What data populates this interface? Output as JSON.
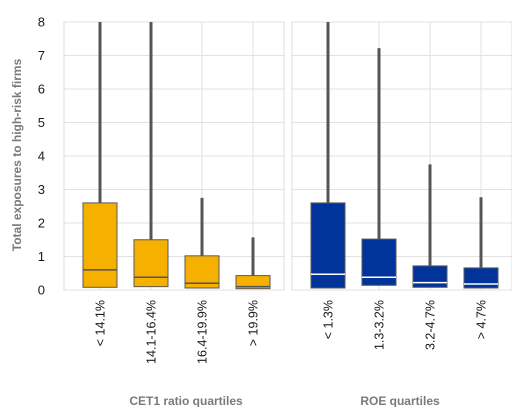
{
  "chart_data": {
    "type": "box",
    "ylabel": "Total exposures to high-risk firms",
    "ylim": [
      0,
      8
    ],
    "yticks": [
      "0",
      "1",
      "2",
      "3",
      "4",
      "5",
      "6",
      "7",
      "8"
    ],
    "grid": true,
    "panels": [
      {
        "xlabel": "CET1 ratio quartiles",
        "color": "#F5B000",
        "median_color": "#555555",
        "categories": [
          "< 14.1%",
          "14.1-16.4%",
          "16.4-19.9%",
          "> 19.9%"
        ],
        "boxes": [
          {
            "whisker_low": 0.08,
            "q1": 0.08,
            "median": 0.6,
            "q3": 2.6,
            "whisker_high": 8.0
          },
          {
            "whisker_low": 0.1,
            "q1": 0.1,
            "median": 0.38,
            "q3": 1.5,
            "whisker_high": 8.0
          },
          {
            "whisker_low": 0.06,
            "q1": 0.06,
            "median": 0.2,
            "q3": 1.02,
            "whisker_high": 2.75
          },
          {
            "whisker_low": 0.04,
            "q1": 0.04,
            "median": 0.1,
            "q3": 0.43,
            "whisker_high": 1.57
          }
        ]
      },
      {
        "xlabel": "ROE quartiles",
        "color": "#00349A",
        "median_color": "#ffffff",
        "categories": [
          "< 1.3%",
          "1.3-3.2%",
          "3.2-4.7%",
          "> 4.7%"
        ],
        "boxes": [
          {
            "whisker_low": 0.06,
            "q1": 0.06,
            "median": 0.47,
            "q3": 2.6,
            "whisker_high": 8.0
          },
          {
            "whisker_low": 0.14,
            "q1": 0.14,
            "median": 0.38,
            "q3": 1.52,
            "whisker_high": 7.22
          },
          {
            "whisker_low": 0.08,
            "q1": 0.08,
            "median": 0.22,
            "q3": 0.72,
            "whisker_high": 3.75
          },
          {
            "whisker_low": 0.06,
            "q1": 0.06,
            "median": 0.18,
            "q3": 0.66,
            "whisker_high": 2.77
          }
        ]
      }
    ]
  }
}
